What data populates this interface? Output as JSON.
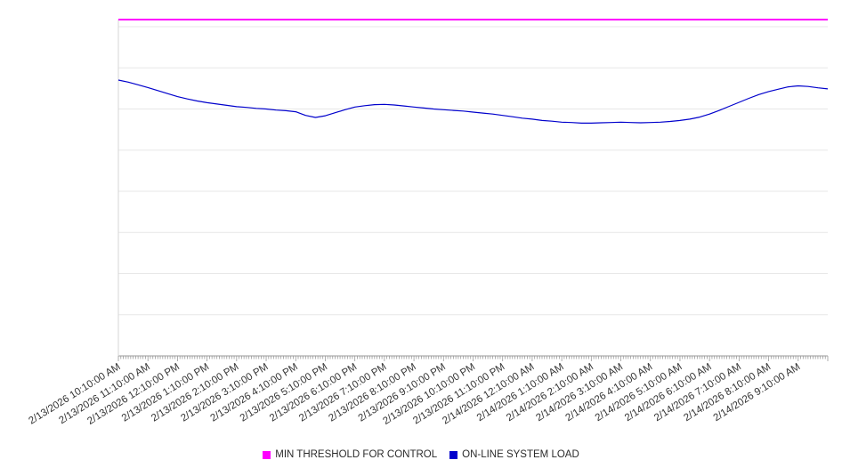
{
  "chart_data": {
    "type": "line",
    "title": "",
    "xlabel": "",
    "ylabel": "",
    "ylim": [
      0,
      100
    ],
    "y_axis_labels_visible": false,
    "grid": {
      "horizontal": true,
      "vertical": false,
      "color": "#e7e7e7",
      "horizontal_lines": 9
    },
    "legend_position": "bottom-center",
    "x_minor_tick_interval_minutes": 5,
    "x_tick_labels": [
      "2/13/2026 10:10:00 AM",
      "2/13/2026 11:10:00 AM",
      "2/13/2026 12:10:00 PM",
      "2/13/2026 1:10:00 PM",
      "2/13/2026 2:10:00 PM",
      "2/13/2026 3:10:00 PM",
      "2/13/2026 4:10:00 PM",
      "2/13/2026 5:10:00 PM",
      "2/13/2026 6:10:00 PM",
      "2/13/2026 7:10:00 PM",
      "2/13/2026 8:10:00 PM",
      "2/13/2026 9:10:00 PM",
      "2/13/2026 10:10:00 PM",
      "2/13/2026 11:10:00 PM",
      "2/14/2026 12:10:00 AM",
      "2/14/2026 1:10:00 AM",
      "2/14/2026 2:10:00 AM",
      "2/14/2026 3:10:00 AM",
      "2/14/2026 4:10:00 AM",
      "2/14/2026 5:10:00 AM",
      "2/14/2026 6:10:00 AM",
      "2/14/2026 7:10:00 AM",
      "2/14/2026 8:10:00 AM",
      "2/14/2026 9:10:00 AM"
    ],
    "series": [
      {
        "name": "MIN THRESHOLD FOR CONTROL",
        "type": "threshold-line",
        "color": "#ff00ff",
        "value": 100
      },
      {
        "name": "ON-LINE SYSTEM LOAD",
        "type": "line",
        "color": "#0000cc",
        "sample_interval_minutes": 20,
        "values": [
          82.0,
          81.4,
          80.6,
          79.8,
          78.9,
          78.0,
          77.1,
          76.4,
          75.8,
          75.3,
          74.9,
          74.5,
          74.1,
          73.9,
          73.6,
          73.4,
          73.1,
          72.9,
          72.6,
          71.5,
          70.9,
          71.4,
          72.3,
          73.2,
          74.0,
          74.4,
          74.7,
          74.8,
          74.6,
          74.3,
          74.0,
          73.7,
          73.4,
          73.2,
          73.0,
          72.8,
          72.5,
          72.2,
          71.9,
          71.5,
          71.1,
          70.7,
          70.4,
          70.0,
          69.8,
          69.5,
          69.4,
          69.2,
          69.2,
          69.3,
          69.4,
          69.5,
          69.4,
          69.3,
          69.4,
          69.5,
          69.7,
          70.0,
          70.4,
          71.0,
          71.9,
          73.0,
          74.2,
          75.4,
          76.6,
          77.7,
          78.6,
          79.3,
          80.0,
          80.3,
          80.1,
          79.7,
          79.4
        ]
      }
    ]
  },
  "legend": {
    "items": [
      {
        "label": "MIN THRESHOLD FOR CONTROL",
        "color": "#ff00ff"
      },
      {
        "label": "ON-LINE SYSTEM LOAD",
        "color": "#0000cc"
      }
    ]
  }
}
